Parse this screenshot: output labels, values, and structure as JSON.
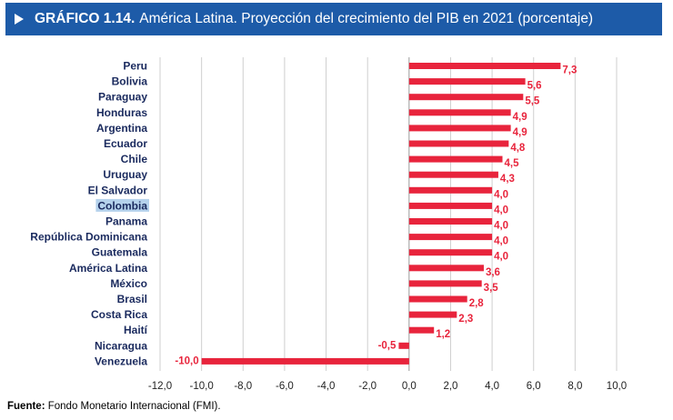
{
  "title_bar": {
    "label_bold": "GRÁFICO 1.14.",
    "label_text": "América Latina. Proyección del crecimiento del PIB en 2021 (porcentaje)"
  },
  "source": {
    "label": "Fuente:",
    "text": "Fondo Monetario Internacional (FMI)."
  },
  "colors": {
    "title_bg": "#1d5ba8",
    "bar": "#e8243c",
    "value_label": "#e8243c",
    "category_label": "#1a2a5e",
    "highlight": "#b5d2ec"
  },
  "chart_data": {
    "type": "bar",
    "orientation": "horizontal",
    "title": "América Latina. Proyección del crecimiento del PIB en 2021 (porcentaje)",
    "categories": [
      "Peru",
      "Bolivia",
      "Paraguay",
      "Honduras",
      "Argentina",
      "Ecuador",
      "Chile",
      "Uruguay",
      "El Salvador",
      "Colombia",
      "Panama",
      "República Dominicana",
      "Guatemala",
      "América Latina",
      "México",
      "Brasil",
      "Costa Rica",
      "Haití",
      "Nicaragua",
      "Venezuela"
    ],
    "values": [
      7.3,
      5.6,
      5.5,
      4.9,
      4.9,
      4.8,
      4.5,
      4.3,
      4.0,
      4.0,
      4.0,
      4.0,
      4.0,
      3.6,
      3.5,
      2.8,
      2.3,
      1.2,
      -0.5,
      -10.0
    ],
    "value_labels": [
      "7,3",
      "5,6",
      "5,5",
      "4,9",
      "4,9",
      "4,8",
      "4,5",
      "4,3",
      "4,0",
      "4,0",
      "4,0",
      "4,0",
      "4,0",
      "3,6",
      "3,5",
      "2,8",
      "2,3",
      "1,2",
      "-0,5",
      "-10,0"
    ],
    "highlighted_category": "Colombia",
    "xlim": [
      -12,
      10
    ],
    "xticks": [
      -12,
      -10,
      -8,
      -6,
      -4,
      -2,
      0,
      2,
      4,
      6,
      8,
      10
    ],
    "xtick_labels": [
      "-12,0",
      "-10,0",
      "-8,0",
      "-6,0",
      "-4,0",
      "-2,0",
      "0,0",
      "2,0",
      "4,0",
      "6,0",
      "8,0",
      "10,0"
    ],
    "grid": "vertical",
    "xlabel": "",
    "ylabel": ""
  }
}
